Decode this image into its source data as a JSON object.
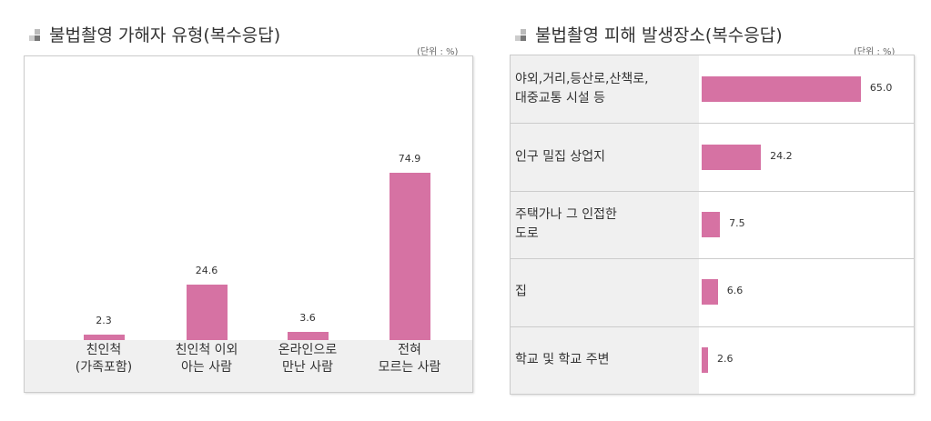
{
  "chart_data": [
    {
      "type": "bar",
      "orientation": "vertical",
      "title": "불법촬영 가해자 유형(복수응답)",
      "unit_label": "(단위 : %)",
      "categories": [
        "친인척\n(가족포함)",
        "친인척 이외\n아는 사람",
        "온라인으로\n만난 사람",
        "전혀\n모르는 사람"
      ],
      "values": [
        2.3,
        24.6,
        3.6,
        74.9
      ],
      "value_labels": [
        "2.3",
        "24.6",
        "3.6",
        "74.9"
      ],
      "color": "#d672a3",
      "grid": false
    },
    {
      "type": "bar",
      "orientation": "horizontal",
      "title": "불법촬영 피해 발생장소(복수응답)",
      "unit_label": "(단위 : %)",
      "categories": [
        "야외,거리,등산로,산책로,\n대중교통 시설 등",
        "인구 밀집 상업지",
        "주택가나 그 인접한\n도로",
        "집",
        "학교 및 학교 주변"
      ],
      "values": [
        65.0,
        24.2,
        7.5,
        6.6,
        2.6
      ],
      "value_labels": [
        "65.0",
        "24.2",
        "7.5",
        "6.6",
        "2.6"
      ],
      "color": "#d672a3",
      "grid": false
    }
  ]
}
